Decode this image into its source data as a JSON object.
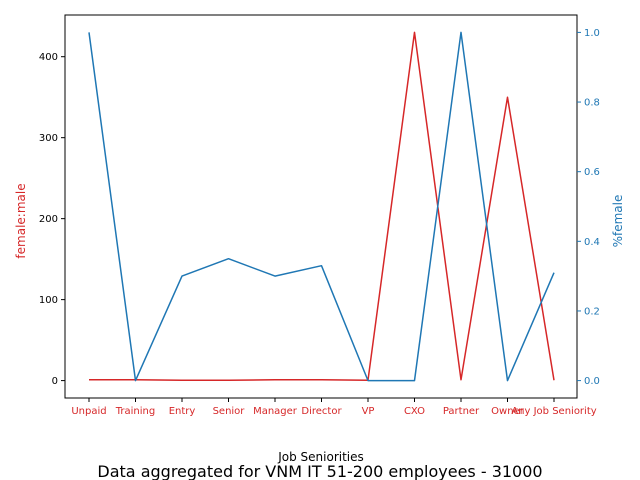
{
  "chart_data": {
    "type": "line",
    "title": "Data aggregated for VNM IT 51-200 employees - 31000",
    "xlabel": "Job Seniorities",
    "categories": [
      "Unpaid",
      "Training",
      "Entry",
      "Senior",
      "Manager",
      "Director",
      "VP",
      "CXO",
      "Partner",
      "Owner",
      "Any Job Seniority"
    ],
    "y_left": {
      "label": "female:male",
      "color": "#d62728",
      "ylim": [
        -21.5,
        451.5
      ],
      "ticks": [
        0,
        100,
        200,
        300,
        400
      ],
      "tick_labels": [
        "0",
        "100",
        "200",
        "300",
        "400"
      ]
    },
    "y_right": {
      "label": "%female",
      "color": "#1f77b4",
      "ylim": [
        -0.05,
        1.05
      ],
      "ticks": [
        0.0,
        0.2,
        0.4,
        0.6,
        0.8,
        1.0
      ],
      "tick_labels": [
        "0.0",
        "0.2",
        "0.4",
        "0.6",
        "0.8",
        "1.0"
      ]
    },
    "series": [
      {
        "axis": "left",
        "color": "#d62728",
        "values": [
          1,
          1,
          0.5,
          0.5,
          1,
          1,
          0.5,
          430,
          1,
          350,
          0.5
        ]
      },
      {
        "axis": "right",
        "color": "#1f77b4",
        "values": [
          1.0,
          0.0,
          0.3,
          0.35,
          0.3,
          0.33,
          0.0,
          0.0,
          1.0,
          0.0,
          0.31
        ]
      }
    ],
    "grid": false,
    "tick_label_color_x": "#d62728"
  }
}
